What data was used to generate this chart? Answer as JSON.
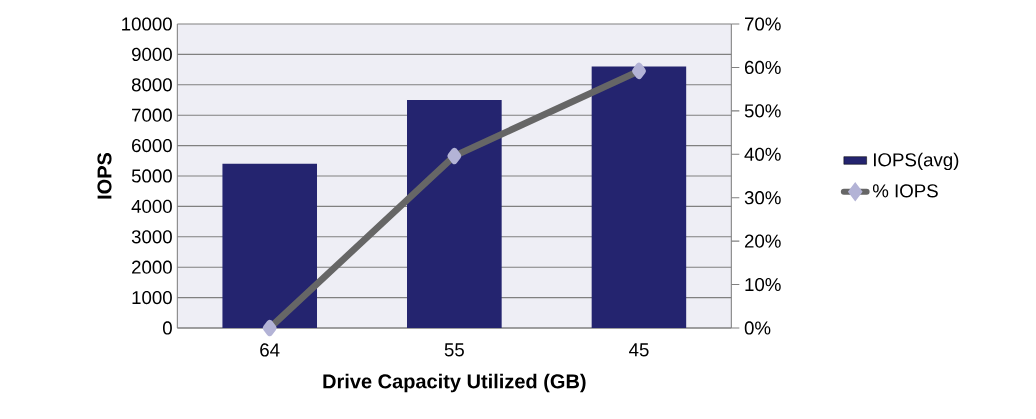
{
  "chart_data": {
    "type": "bar",
    "xlabel": "Drive Capacity Utilized (GB)",
    "ylabel": "IOPS",
    "categories": [
      "64",
      "55",
      "45"
    ],
    "series": [
      {
        "name": "IOPS(avg)",
        "color": "#24246f",
        "values": [
          5400,
          7500,
          8600
        ]
      },
      {
        "name": "% IOPS",
        "type": "line",
        "axis": "y2",
        "color": "#666666",
        "values": [
          0,
          39.6,
          59.2
        ]
      }
    ],
    "ylim": [
      0,
      10000
    ],
    "yticks": [
      0,
      1000,
      2000,
      3000,
      4000,
      5000,
      6000,
      7000,
      8000,
      9000,
      10000
    ],
    "y2lim": [
      0,
      70
    ],
    "y2ticks": [
      {
        "value": 0,
        "label": "0%"
      },
      {
        "value": 10,
        "label": "10%"
      },
      {
        "value": 20,
        "label": "20%"
      },
      {
        "value": 30,
        "label": "30%"
      },
      {
        "value": 40,
        "label": "40%"
      },
      {
        "value": 50,
        "label": "50%"
      },
      {
        "value": 60,
        "label": "60%"
      },
      {
        "value": 70,
        "label": "70%"
      }
    ],
    "grid": "y",
    "legend": "right",
    "marker": "diamond",
    "line_style": "solid"
  }
}
